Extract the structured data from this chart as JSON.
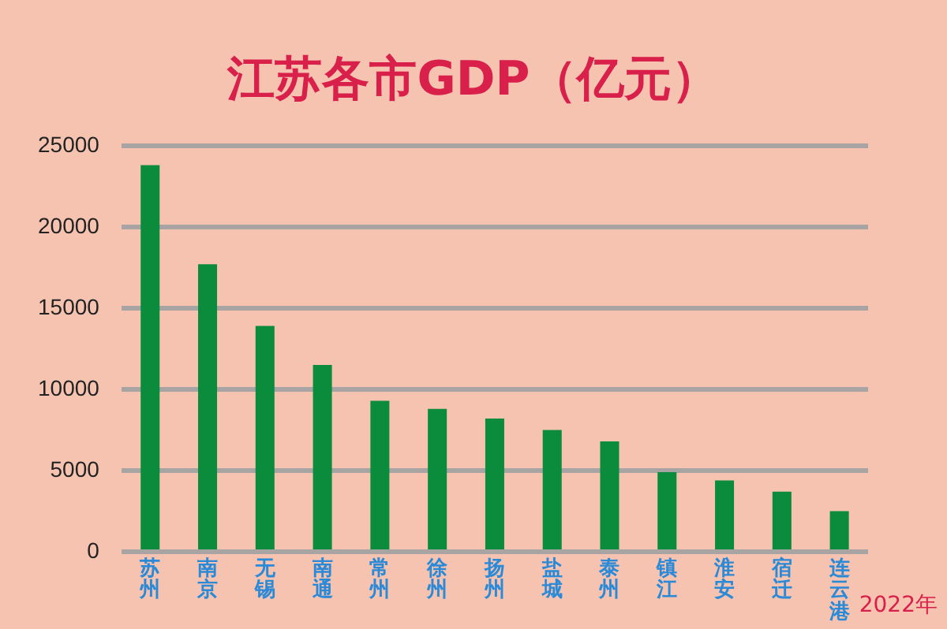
{
  "chart_data": {
    "type": "bar",
    "title": "江苏各市GDP（亿元）",
    "categories": [
      "苏州",
      "南京",
      "无锡",
      "南通",
      "常州",
      "徐州",
      "扬州",
      "盐城",
      "泰州",
      "镇江",
      "淮安",
      "宿迁",
      "连云港"
    ],
    "values": [
      23800,
      17700,
      13900,
      11500,
      9300,
      8800,
      8200,
      7500,
      6800,
      4900,
      4400,
      3700,
      2500
    ],
    "color": "#0a8c3c",
    "ylim": [
      0,
      25000
    ],
    "yticks": [
      0,
      5000,
      10000,
      15000,
      20000,
      25000
    ],
    "grid": "y",
    "annotations": [
      "2022年"
    ]
  }
}
